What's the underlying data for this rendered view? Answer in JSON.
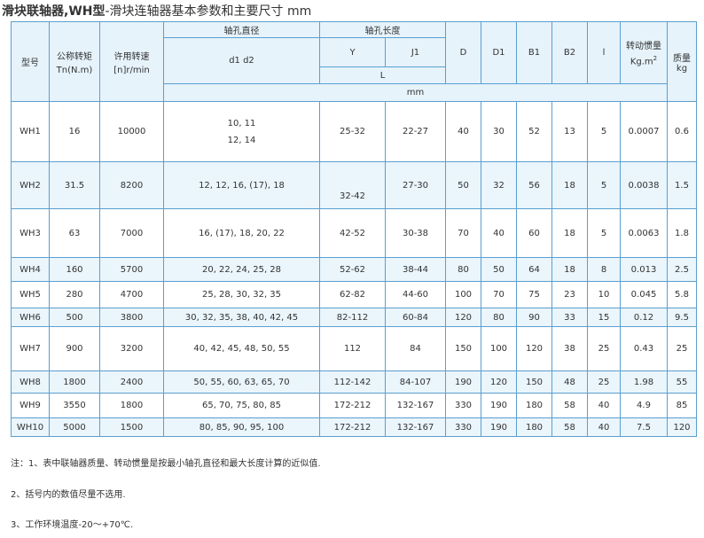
{
  "title": {
    "main": "滑块联轴器,WH型",
    "sub": "-滑块连轴器基本参数和主要尺寸 mm"
  },
  "headers": {
    "model": "型号",
    "torque": "公称转矩",
    "torque_unit": "Tn(N.m)",
    "speed": "许用转速",
    "speed_unit": "[n]r/min",
    "bore_diameter": "轴孔直径",
    "bore_d": "d1 d2",
    "bore_length": "轴孔长度",
    "Y": "Y",
    "J1": "J1",
    "L": "L",
    "mm": "mm",
    "D": "D",
    "D1": "D1",
    "B1": "B1",
    "B2": "B2",
    "l": "l",
    "inertia": "转动惯量",
    "inertia_unit": "Kg.m",
    "inertia_exp": "2",
    "mass": "质量kg"
  },
  "rows": [
    {
      "model": "WH1",
      "torque": "16",
      "speed": "10000",
      "d": "10, 11",
      "d2": "12, 14",
      "Y": "25-32",
      "J1": "22-27",
      "D": "40",
      "D1": "30",
      "B1": "52",
      "B2": "13",
      "l": "5",
      "inertia": "0.0007",
      "mass": "0.6"
    },
    {
      "model": "WH2",
      "torque": "31.5",
      "speed": "8200",
      "d": "12, 12, 16, (17), 18",
      "Y": "32-42",
      "J1": "27-30",
      "D": "50",
      "D1": "32",
      "B1": "56",
      "B2": "18",
      "l": "5",
      "inertia": "0.0038",
      "mass": "1.5"
    },
    {
      "model": "WH3",
      "torque": "63",
      "speed": "7000",
      "d": "16, (17), 18, 20, 22",
      "Y": "42-52",
      "J1": "30-38",
      "D": "70",
      "D1": "40",
      "B1": "60",
      "B2": "18",
      "l": "5",
      "inertia": "0.0063",
      "mass": "1.8"
    },
    {
      "model": "WH4",
      "torque": "160",
      "speed": "5700",
      "d": "20, 22, 24, 25, 28",
      "Y": "52-62",
      "J1": "38-44",
      "D": "80",
      "D1": "50",
      "B1": "64",
      "B2": "18",
      "l": "8",
      "inertia": "0.013",
      "mass": "2.5"
    },
    {
      "model": "WH5",
      "torque": "280",
      "speed": "4700",
      "d": "25, 28, 30, 32, 35",
      "Y": "62-82",
      "J1": "44-60",
      "D": "100",
      "D1": "70",
      "B1": "75",
      "B2": "23",
      "l": "10",
      "inertia": "0.045",
      "mass": "5.8"
    },
    {
      "model": "WH6",
      "torque": "500",
      "speed": "3800",
      "d": "30, 32, 35, 38, 40, 42, 45",
      "Y": "82-112",
      "J1": "60-84",
      "D": "120",
      "D1": "80",
      "B1": "90",
      "B2": "33",
      "l": "15",
      "inertia": "0.12",
      "mass": "9.5"
    },
    {
      "model": "WH7",
      "torque": "900",
      "speed": "3200",
      "d": "40, 42, 45, 48, 50, 55",
      "Y": "112",
      "J1": "84",
      "D": "150",
      "D1": "100",
      "B1": "120",
      "B2": "38",
      "l": "25",
      "inertia": "0.43",
      "mass": "25"
    },
    {
      "model": "WH8",
      "torque": "1800",
      "speed": "2400",
      "d": "50, 55, 60, 63, 65, 70",
      "Y": "112-142",
      "J1": "84-107",
      "D": "190",
      "D1": "120",
      "B1": "150",
      "B2": "48",
      "l": "25",
      "inertia": "1.98",
      "mass": "55"
    },
    {
      "model": "WH9",
      "torque": "3550",
      "speed": "1800",
      "d": "65, 70, 75, 80, 85",
      "Y": "172-212",
      "J1": "132-167",
      "D": "330",
      "D1": "190",
      "B1": "180",
      "B2": "58",
      "l": "40",
      "inertia": "4.9",
      "mass": "85"
    },
    {
      "model": "WH10",
      "torque": "5000",
      "speed": "1500",
      "d": "80, 85, 90, 95, 100",
      "Y": "172-212",
      "J1": "132-167",
      "D": "330",
      "D1": "190",
      "B1": "180",
      "B2": "58",
      "l": "40",
      "inertia": "7.5",
      "mass": "120"
    }
  ],
  "notes": [
    "注：1、表中联轴器质量、转动惯量是按最小轴孔直径和最大长度计算的近似值.",
    "2、括号内的数值尽量不选用.",
    "3、工作环境温度-20～+70℃."
  ]
}
